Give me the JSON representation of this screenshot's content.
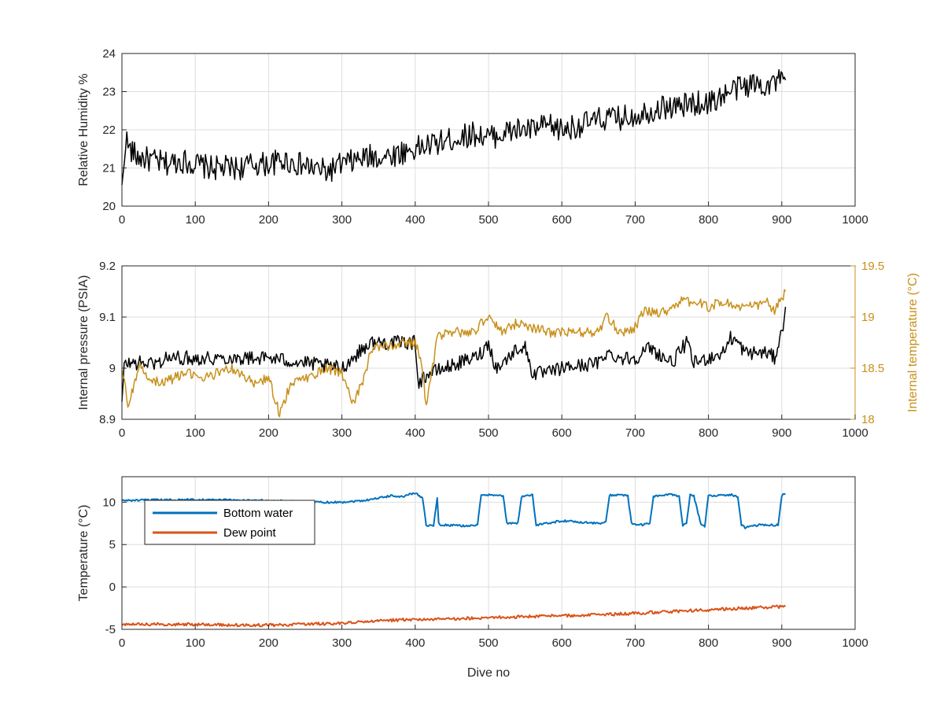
{
  "chart_data": [
    {
      "type": "line",
      "xlabel": "",
      "ylabel": "Relative Humidity %",
      "xlim": [
        0,
        1000
      ],
      "ylim": [
        20,
        24
      ],
      "xticks": [
        0,
        100,
        200,
        300,
        400,
        500,
        600,
        700,
        800,
        900,
        1000
      ],
      "yticks": [
        20,
        21,
        22,
        23,
        24
      ],
      "grid": true,
      "series": [
        {
          "name": "",
          "color": "#000000",
          "x": [
            0,
            5,
            10,
            20,
            40,
            60,
            80,
            100,
            120,
            140,
            160,
            180,
            200,
            220,
            240,
            260,
            280,
            300,
            320,
            340,
            360,
            380,
            400,
            420,
            440,
            460,
            480,
            500,
            520,
            540,
            560,
            580,
            600,
            620,
            640,
            660,
            680,
            700,
            720,
            740,
            760,
            780,
            800,
            820,
            840,
            860,
            880,
            905
          ],
          "y": [
            20.4,
            21.8,
            21.5,
            21.3,
            21.2,
            21.1,
            21.2,
            21.1,
            21.0,
            21.0,
            21.0,
            21.1,
            21.1,
            21.2,
            21.1,
            21.0,
            20.9,
            21.1,
            21.2,
            21.3,
            21.3,
            21.4,
            21.5,
            21.6,
            21.7,
            21.8,
            21.9,
            21.8,
            21.9,
            22.0,
            22.0,
            22.1,
            22.0,
            22.1,
            22.2,
            22.3,
            22.3,
            22.4,
            22.5,
            22.6,
            22.6,
            22.7,
            22.7,
            22.9,
            23.1,
            23.2,
            23.2,
            23.3
          ]
        }
      ]
    },
    {
      "type": "line",
      "xlabel": "",
      "ylabel": "Internal pressure (PSIA)",
      "ylabel_right": "Internal temperature (°C)",
      "xlim": [
        0,
        1000
      ],
      "ylim": [
        8.9,
        9.2
      ],
      "ylim_right": [
        18,
        19.5
      ],
      "xticks": [
        0,
        100,
        200,
        300,
        400,
        500,
        600,
        700,
        800,
        900,
        1000
      ],
      "yticks": [
        8.9,
        9,
        9.1,
        9.2
      ],
      "yticks_right": [
        18,
        18.5,
        19,
        19.5
      ],
      "grid": true,
      "series": [
        {
          "name": "",
          "color": "#000000",
          "axis": "left",
          "x": [
            0,
            3,
            5,
            50,
            60,
            150,
            200,
            250,
            300,
            330,
            340,
            400,
            405,
            410,
            420,
            440,
            480,
            490,
            500,
            510,
            520,
            540,
            550,
            560,
            570,
            580,
            600,
            650,
            660,
            680,
            700,
            720,
            730,
            750,
            770,
            780,
            800,
            820,
            830,
            840,
            850,
            880,
            890,
            900,
            905
          ],
          "y": [
            8.93,
            9.0,
            9.01,
            9.01,
            9.02,
            9.02,
            9.02,
            9.01,
            9.0,
            9.04,
            9.05,
            9.05,
            8.97,
            8.98,
            8.99,
            9.0,
            9.02,
            9.03,
            9.05,
            9.0,
            9.01,
            9.04,
            9.04,
            8.99,
            8.99,
            8.99,
            9.0,
            9.01,
            9.03,
            9.02,
            9.02,
            9.04,
            9.03,
            9.01,
            9.05,
            9.01,
            9.02,
            9.03,
            9.06,
            9.05,
            9.03,
            9.03,
            9.02,
            9.07,
            9.12
          ]
        },
        {
          "name": "",
          "color": "#c8901b",
          "axis": "right",
          "x": [
            0,
            8,
            15,
            25,
            40,
            55,
            70,
            90,
            110,
            130,
            150,
            180,
            200,
            215,
            230,
            250,
            280,
            300,
            315,
            330,
            340,
            360,
            380,
            400,
            410,
            415,
            430,
            450,
            480,
            490,
            500,
            520,
            540,
            560,
            580,
            600,
            620,
            650,
            660,
            680,
            700,
            710,
            740,
            760,
            780,
            800,
            820,
            840,
            860,
            880,
            890,
            905
          ],
          "y": [
            18.5,
            18.15,
            18.3,
            18.5,
            18.4,
            18.35,
            18.4,
            18.45,
            18.4,
            18.45,
            18.5,
            18.35,
            18.4,
            18.05,
            18.35,
            18.4,
            18.5,
            18.45,
            18.15,
            18.4,
            18.7,
            18.7,
            18.75,
            18.75,
            18.5,
            18.1,
            18.8,
            18.85,
            18.85,
            18.95,
            19.0,
            18.85,
            18.95,
            18.9,
            18.85,
            18.85,
            18.85,
            18.85,
            19.0,
            18.85,
            18.9,
            19.05,
            19.05,
            19.15,
            19.15,
            19.1,
            19.15,
            19.1,
            19.1,
            19.15,
            19.05,
            19.25
          ]
        }
      ]
    },
    {
      "type": "line",
      "xlabel": "Dive no",
      "ylabel": "Temperature (°C)",
      "xlim": [
        0,
        1000
      ],
      "ylim": [
        -5,
        13
      ],
      "xticks": [
        0,
        100,
        200,
        300,
        400,
        500,
        600,
        700,
        800,
        900,
        1000
      ],
      "yticks": [
        -5,
        0,
        5,
        10
      ],
      "grid": true,
      "legend": "top-left",
      "series": [
        {
          "name": "Bottom water",
          "color": "#0072bd",
          "x": [
            0,
            100,
            200,
            250,
            300,
            330,
            350,
            370,
            380,
            400,
            410,
            415,
            425,
            430,
            432,
            435,
            440,
            470,
            485,
            490,
            510,
            520,
            525,
            540,
            545,
            550,
            560,
            565,
            600,
            650,
            660,
            665,
            680,
            690,
            695,
            700,
            710,
            720,
            725,
            750,
            760,
            765,
            770,
            775,
            780,
            790,
            795,
            800,
            820,
            830,
            840,
            845,
            850,
            870,
            895,
            900,
            905
          ],
          "y": [
            10.2,
            10.3,
            10.2,
            10.0,
            10.0,
            10.2,
            10.5,
            10.8,
            10.6,
            11.1,
            10.5,
            7.3,
            7.2,
            10.5,
            7.5,
            7.3,
            7.3,
            7.2,
            7.3,
            10.8,
            10.9,
            10.7,
            7.5,
            7.5,
            10.6,
            10.8,
            10.8,
            7.3,
            7.8,
            7.5,
            7.6,
            10.8,
            10.9,
            10.7,
            7.5,
            7.4,
            7.3,
            7.5,
            10.7,
            10.9,
            10.7,
            7.3,
            7.5,
            10.9,
            10.7,
            7.3,
            7.1,
            10.8,
            10.8,
            10.9,
            10.6,
            7.3,
            7.0,
            7.3,
            7.3,
            10.8,
            11.0
          ]
        },
        {
          "name": "Dew point",
          "color": "#d95319",
          "x": [
            0,
            50,
            100,
            150,
            200,
            250,
            300,
            350,
            400,
            450,
            500,
            550,
            600,
            650,
            700,
            750,
            800,
            850,
            880,
            905
          ],
          "y": [
            -4.4,
            -4.4,
            -4.4,
            -4.5,
            -4.5,
            -4.4,
            -4.3,
            -4.0,
            -3.8,
            -3.8,
            -3.6,
            -3.5,
            -3.4,
            -3.3,
            -3.1,
            -2.9,
            -2.7,
            -2.5,
            -2.4,
            -2.3
          ]
        }
      ]
    }
  ]
}
